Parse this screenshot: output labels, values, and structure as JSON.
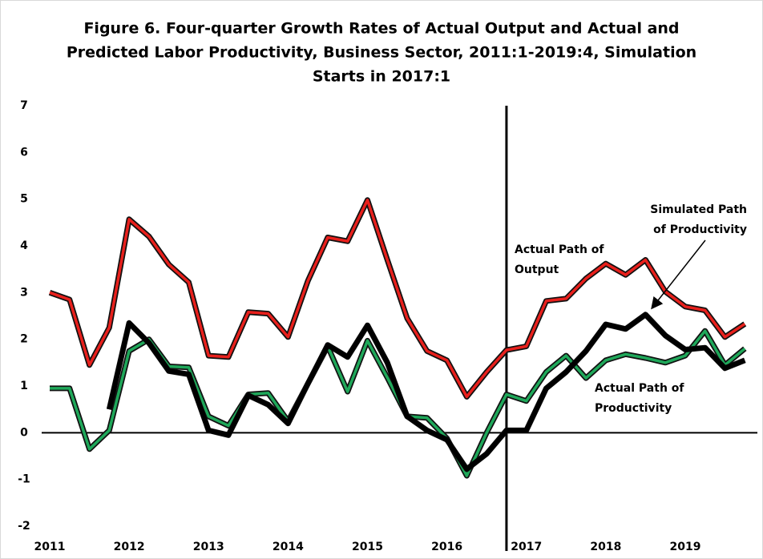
{
  "chart_data": {
    "type": "line",
    "title": [
      "Figure 6. Four-quarter Growth Rates of Actual Output and Actual and",
      "Predicted Labor Productivity, Business Sector, 2011:1-2019:4, Simulation",
      "Starts in 2017:1"
    ],
    "categories": [
      "2011",
      null,
      null,
      null,
      "2012",
      null,
      null,
      null,
      "2013",
      null,
      null,
      null,
      "2014",
      null,
      null,
      null,
      "2015",
      null,
      null,
      null,
      "2016",
      null,
      null,
      null,
      "2017",
      null,
      null,
      null,
      "2018",
      null,
      null,
      null,
      "2019",
      null,
      null,
      null
    ],
    "series": [
      {
        "name": [
          "Actual Path of",
          "Output"
        ],
        "color": "#e8201c",
        "values": [
          3.0,
          2.85,
          1.45,
          2.25,
          4.57,
          4.2,
          3.6,
          3.22,
          1.65,
          1.62,
          2.58,
          2.55,
          2.05,
          3.25,
          4.18,
          4.1,
          4.98,
          3.7,
          2.45,
          1.75,
          1.55,
          0.77,
          1.3,
          1.77,
          1.85,
          2.82,
          2.87,
          3.3,
          3.62,
          3.38,
          3.7,
          3.02,
          2.7,
          2.62,
          2.05,
          2.33
        ]
      },
      {
        "name": [
          "Actual Path of",
          "Productivity"
        ],
        "color": "#1fa85a",
        "values": [
          0.95,
          0.95,
          -0.35,
          0.05,
          1.75,
          2.0,
          1.42,
          1.4,
          0.35,
          0.15,
          0.82,
          0.85,
          0.25,
          1.05,
          1.85,
          0.88,
          1.97,
          1.18,
          0.35,
          0.32,
          -0.12,
          -0.92,
          0.0,
          0.82,
          0.68,
          1.3,
          1.65,
          1.17,
          1.55,
          1.68,
          1.6,
          1.5,
          1.65,
          2.18,
          1.45,
          1.8
        ]
      },
      {
        "name": [
          "Simulated Path",
          "of Productivity"
        ],
        "color": "#000000",
        "values": [
          null,
          null,
          null,
          0.5,
          2.35,
          1.92,
          1.32,
          1.25,
          0.05,
          -0.05,
          0.8,
          0.6,
          0.2,
          1.05,
          1.88,
          1.62,
          2.3,
          1.5,
          0.35,
          0.05,
          -0.15,
          -0.78,
          -0.45,
          0.05,
          0.05,
          0.95,
          1.3,
          1.75,
          2.32,
          2.22,
          2.53,
          2.08,
          1.78,
          1.82,
          1.38,
          1.55
        ]
      }
    ],
    "ylim": [
      -2,
      7
    ],
    "yticks": [
      -2,
      -1,
      0,
      1,
      2,
      3,
      4,
      5,
      6,
      7
    ],
    "vertical_line_index": 23
  }
}
